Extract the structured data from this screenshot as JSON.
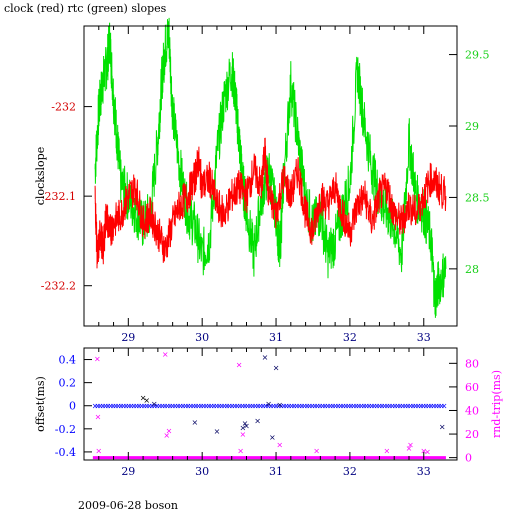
{
  "page": {
    "title": "clock (red) rtc (green) slopes",
    "footer": "2009-06-28 boson"
  },
  "colors": {
    "clock": "#ff0000",
    "rtc": "#00e000",
    "offset": "#0000ff",
    "rndtrip": "#ff00ff",
    "axis_left_top": "#d40000",
    "axis_right_top": "#18d018",
    "axis_x": "#000080",
    "frame": "#000000"
  },
  "chart_data": [
    {
      "type": "line",
      "title": "clock (red) rtc (green) slopes",
      "xlabel": "",
      "ylabel": "clockslope",
      "xlim": [
        28.4,
        33.45
      ],
      "ylim": [
        -232.245,
        -231.91
      ],
      "y2lim": [
        27.6,
        29.7
      ],
      "xticks": [
        "29",
        "30",
        "31",
        "32",
        "33"
      ],
      "yticks": [
        "-232",
        "-232.1",
        "-232.2"
      ],
      "y2ticks": [
        "29.5",
        "29",
        "28.5",
        "28"
      ],
      "grid": false,
      "series": [
        {
          "name": "clock",
          "axis": "left",
          "x": [
            28.55,
            28.58,
            28.62,
            28.66,
            28.7,
            28.75,
            28.8,
            28.9,
            29.0,
            29.1,
            29.2,
            29.3,
            29.4,
            29.5,
            29.6,
            29.7,
            29.8,
            29.9,
            29.95,
            30.0,
            30.1,
            30.2,
            30.3,
            30.4,
            30.5,
            30.6,
            30.7,
            30.8,
            30.85,
            30.9,
            31.0,
            31.1,
            31.2,
            31.3,
            31.4,
            31.5,
            31.6,
            31.7,
            31.8,
            31.9,
            32.0,
            32.1,
            32.2,
            32.3,
            32.4,
            32.5,
            32.6,
            32.7,
            32.8,
            32.9,
            33.0,
            33.1,
            33.2,
            33.3
          ],
          "values": [
            -232.1,
            -232.17,
            -232.14,
            -232.16,
            -232.12,
            -232.14,
            -232.13,
            -232.12,
            -232.1,
            -232.09,
            -232.13,
            -232.12,
            -232.14,
            -232.16,
            -232.13,
            -232.11,
            -232.1,
            -232.08,
            -232.06,
            -232.09,
            -232.08,
            -232.11,
            -232.12,
            -232.1,
            -232.09,
            -232.1,
            -232.07,
            -232.09,
            -232.05,
            -232.1,
            -232.12,
            -232.08,
            -232.1,
            -232.07,
            -232.12,
            -232.14,
            -232.1,
            -232.11,
            -232.09,
            -232.12,
            -232.14,
            -232.11,
            -232.1,
            -232.13,
            -232.1,
            -232.09,
            -232.12,
            -232.13,
            -232.11,
            -232.12,
            -232.1,
            -232.08,
            -232.09,
            -232.1
          ]
        },
        {
          "name": "rtc",
          "axis": "right",
          "x": [
            28.55,
            28.6,
            28.65,
            28.7,
            28.75,
            28.8,
            28.85,
            28.9,
            29.0,
            29.1,
            29.2,
            29.3,
            29.4,
            29.45,
            29.5,
            29.55,
            29.6,
            29.7,
            29.8,
            29.9,
            30.0,
            30.1,
            30.2,
            30.3,
            30.4,
            30.45,
            30.5,
            30.55,
            30.6,
            30.7,
            30.8,
            30.9,
            31.0,
            31.05,
            31.1,
            31.2,
            31.3,
            31.4,
            31.5,
            31.6,
            31.7,
            31.8,
            31.9,
            32.0,
            32.1,
            32.2,
            32.3,
            32.4,
            32.5,
            32.6,
            32.7,
            32.8,
            32.9,
            33.0,
            33.1,
            33.15,
            33.2,
            33.3
          ],
          "values": [
            28.7,
            29.1,
            29.3,
            29.4,
            29.6,
            29.2,
            28.9,
            28.6,
            28.5,
            28.4,
            28.3,
            28.4,
            28.9,
            29.3,
            29.55,
            29.65,
            29.1,
            28.7,
            28.4,
            28.3,
            28.1,
            28.2,
            28.8,
            29.2,
            29.4,
            29.2,
            28.9,
            28.6,
            28.4,
            28.1,
            28.5,
            28.7,
            28.4,
            28.1,
            28.6,
            29.3,
            28.9,
            28.5,
            28.3,
            28.4,
            28.1,
            28.2,
            28.4,
            28.6,
            29.4,
            29.0,
            28.7,
            28.5,
            28.4,
            28.3,
            28.1,
            28.9,
            28.5,
            28.4,
            28.2,
            27.8,
            27.9,
            28.0
          ]
        }
      ]
    },
    {
      "type": "scatter",
      "xlabel": "",
      "ylabel": "offset(ms)",
      "y2label": "rnd-trip(ms)",
      "xlim": [
        28.4,
        33.45
      ],
      "ylim": [
        -0.47,
        0.5
      ],
      "y2lim": [
        -2,
        93
      ],
      "xticks": [
        "29",
        "30",
        "31",
        "32",
        "33"
      ],
      "yticks": [
        "0.4",
        "0.2",
        "0",
        "-0.2",
        "-0.4"
      ],
      "y2ticks": [
        "80",
        "60",
        "40",
        "20",
        "0"
      ],
      "grid": false,
      "series": [
        {
          "name": "offset",
          "axis": "left",
          "x": [
            29.2,
            29.25,
            29.35,
            29.9,
            30.2,
            30.55,
            30.58,
            30.6,
            30.75,
            30.85,
            30.9,
            30.95,
            31.0,
            31.05,
            33.25
          ],
          "values": [
            0.07,
            0.05,
            0.02,
            -0.14,
            -0.22,
            -0.19,
            -0.15,
            -0.17,
            -0.13,
            0.42,
            0.02,
            -0.27,
            0.33,
            0.01,
            -0.18
          ]
        },
        {
          "name": "rnd-trip",
          "axis": "right",
          "x": [
            28.58,
            28.59,
            28.6,
            29.5,
            29.52,
            29.55,
            30.5,
            30.52,
            30.55,
            31.05,
            31.55,
            32.5,
            32.8,
            32.82,
            33.0,
            33.05
          ],
          "values": [
            84,
            35,
            6,
            88,
            19,
            23,
            79,
            6,
            20,
            11,
            6,
            6,
            8,
            11,
            6,
            5
          ]
        }
      ]
    }
  ]
}
